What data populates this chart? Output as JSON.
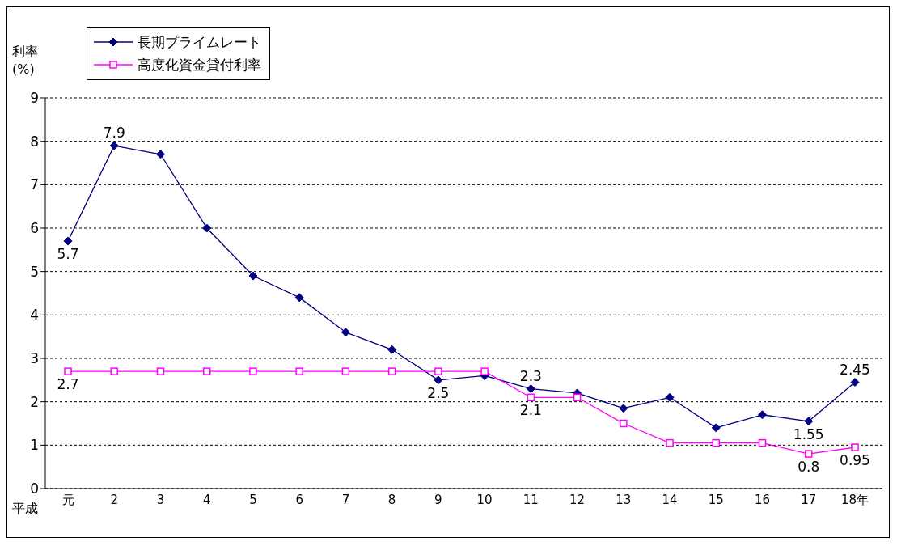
{
  "chart_data": {
    "type": "line",
    "xlabel": "平成",
    "ylabel": "利率 (%)",
    "categories": [
      "元",
      "2",
      "3",
      "4",
      "5",
      "6",
      "7",
      "8",
      "9",
      "10",
      "11",
      "12",
      "13",
      "14",
      "15",
      "16",
      "17",
      "18年"
    ],
    "series": [
      {
        "name": "長期プライムレート",
        "color": "#000080",
        "marker": "diamond",
        "values": [
          5.7,
          7.9,
          7.7,
          6.0,
          4.9,
          4.4,
          3.6,
          3.2,
          2.5,
          2.6,
          2.3,
          2.2,
          1.85,
          2.1,
          1.4,
          1.7,
          1.55,
          2.45
        ],
        "value_labels": [
          "5.7",
          "7.9",
          null,
          null,
          null,
          null,
          null,
          null,
          "2.5",
          null,
          "2.3",
          null,
          null,
          null,
          null,
          null,
          "1.55",
          "2.45"
        ]
      },
      {
        "name": "高度化資金貸付利率",
        "color": "#ff00ff",
        "marker": "square",
        "values": [
          2.7,
          2.7,
          2.7,
          2.7,
          2.7,
          2.7,
          2.7,
          2.7,
          2.7,
          2.7,
          2.1,
          2.1,
          1.5,
          1.05,
          1.05,
          1.05,
          0.8,
          0.95
        ],
        "value_labels": [
          "2.7",
          null,
          null,
          null,
          null,
          null,
          null,
          null,
          null,
          null,
          "2.1",
          null,
          null,
          null,
          null,
          null,
          "0.8",
          "0.95"
        ]
      }
    ],
    "ylim": [
      0,
      9
    ],
    "yticks": [
      0,
      1,
      2,
      3,
      4,
      5,
      6,
      7,
      8,
      9
    ],
    "grid": "y",
    "line_style": "solid",
    "legend": "top left"
  }
}
